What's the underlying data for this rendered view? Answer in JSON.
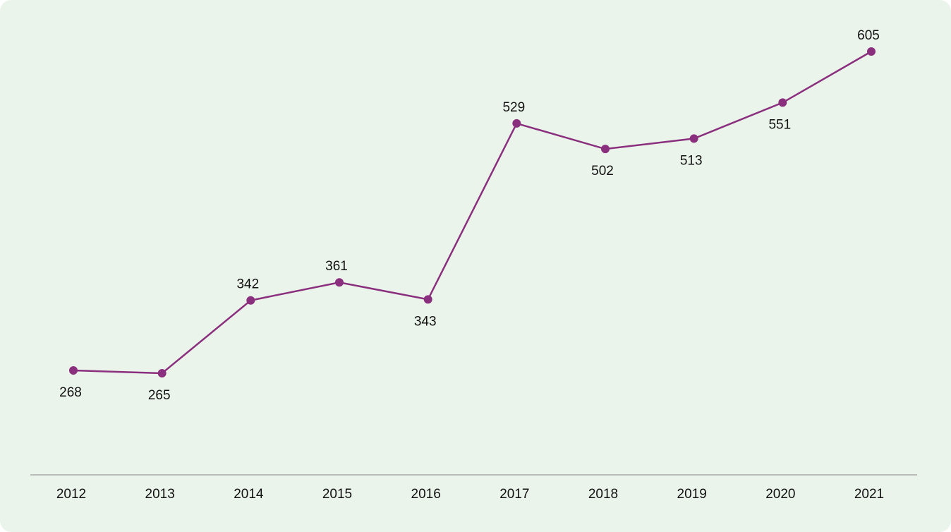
{
  "colors": {
    "background": "#ebf4eb",
    "line": "#8a2f7d",
    "axis": "#a8a8a8",
    "text": "#111111"
  },
  "chart_data": {
    "type": "line",
    "title": "",
    "xlabel": "",
    "ylabel": "",
    "categories": [
      "2012",
      "2013",
      "2014",
      "2015",
      "2016",
      "2017",
      "2018",
      "2019",
      "2020",
      "2021"
    ],
    "series": [
      {
        "values": [
          268,
          265,
          342,
          361,
          343,
          529,
          502,
          513,
          551,
          605
        ],
        "label_position": [
          "below",
          "below",
          "above",
          "above",
          "below",
          "above",
          "below",
          "below",
          "below",
          "above"
        ]
      }
    ],
    "grid": false,
    "legend": "none"
  }
}
